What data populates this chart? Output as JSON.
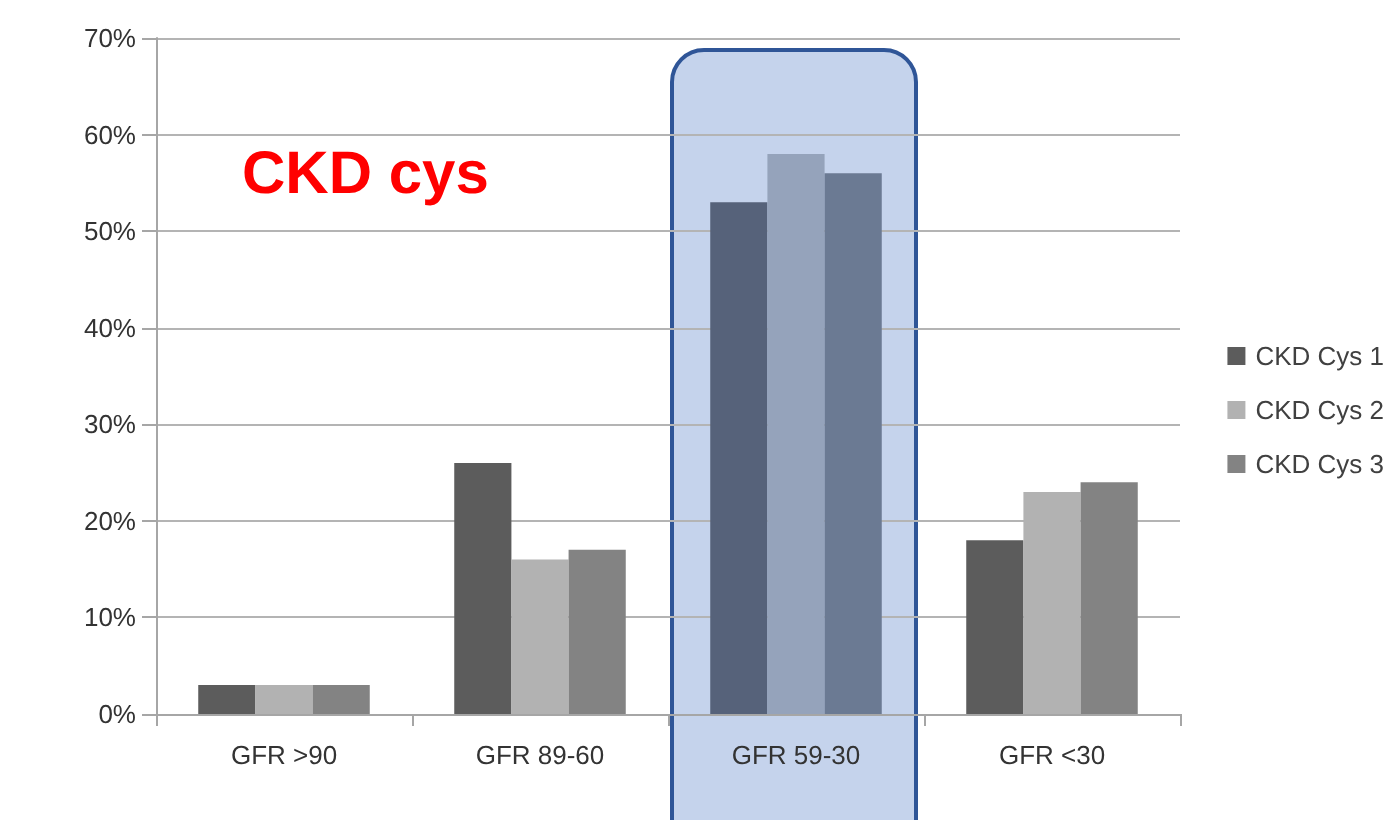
{
  "chart_data": {
    "type": "bar",
    "categories": [
      "GFR >90",
      "GFR 89-60",
      "GFR 59-30",
      "GFR <30"
    ],
    "series": [
      {
        "name": "CKD Cys 1",
        "color": "#5c5c5c",
        "colors": [
          "#5c5c5c",
          "#5c5c5c",
          "#56627a",
          "#5c5c5c"
        ],
        "values": [
          3,
          26,
          53,
          18
        ]
      },
      {
        "name": "CKD Cys 2",
        "color": "#b2b2b2",
        "colors": [
          "#b2b2b2",
          "#b2b2b2",
          "#95a3bb",
          "#b2b2b2"
        ],
        "values": [
          3,
          16,
          58,
          23
        ]
      },
      {
        "name": "CKD Cys 3",
        "color": "#838383",
        "colors": [
          "#838383",
          "#838383",
          "#6b7a93",
          "#838383"
        ],
        "values": [
          3,
          17,
          56,
          24
        ]
      }
    ],
    "ylim": [
      0,
      70
    ],
    "yticks": [
      {
        "value": 0,
        "label": "0%"
      },
      {
        "value": 10,
        "label": "10%"
      },
      {
        "value": 20,
        "label": "20%"
      },
      {
        "value": 30,
        "label": "30%"
      },
      {
        "value": 40,
        "label": "40%"
      },
      {
        "value": 50,
        "label": "50%"
      },
      {
        "value": 60,
        "label": "60%"
      },
      {
        "value": 70,
        "label": "70%"
      }
    ],
    "grid": "y",
    "legend": "right",
    "annotations": [
      "CKD cys"
    ],
    "bands": [
      {
        "axis": "x",
        "from": "GFR 59-30",
        "to": "GFR 59-30",
        "color": "#c5d3ec"
      }
    ]
  }
}
